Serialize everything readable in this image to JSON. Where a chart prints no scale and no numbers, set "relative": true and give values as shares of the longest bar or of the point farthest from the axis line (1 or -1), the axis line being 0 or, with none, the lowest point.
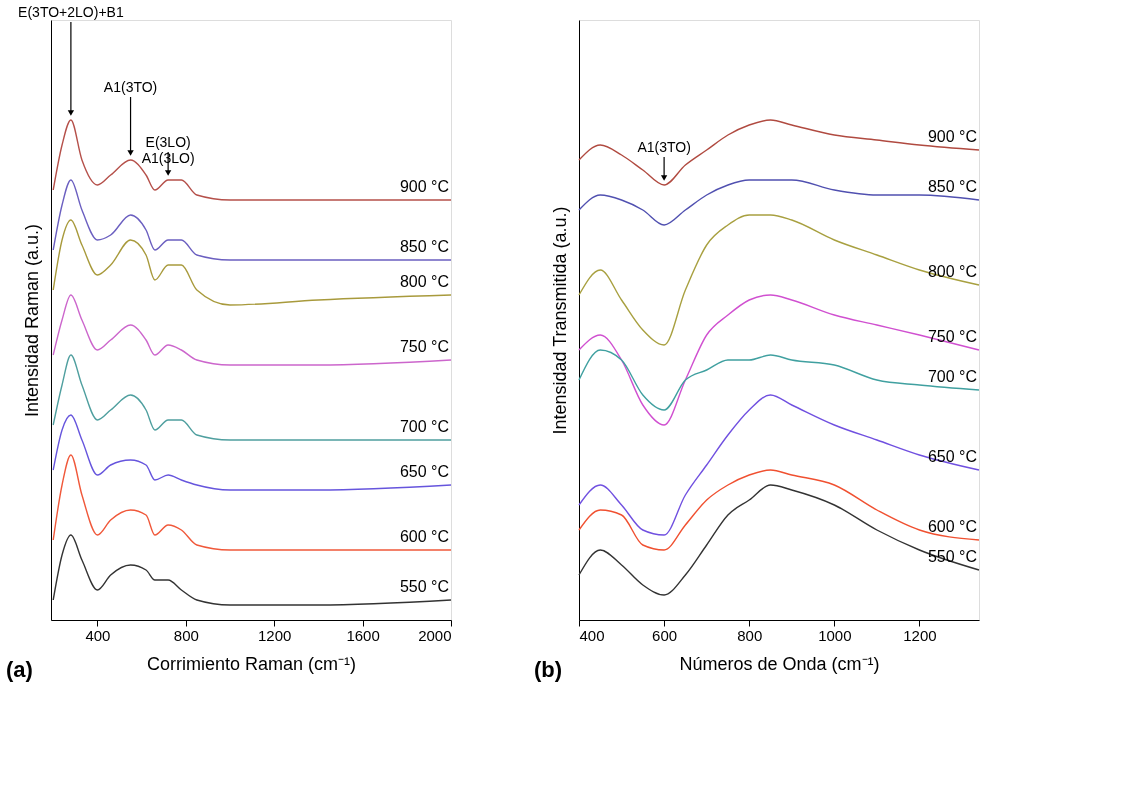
{
  "chart_data": [
    {
      "type": "line",
      "relative": true,
      "xlabel": "Corrimiento Raman (cm⁻¹)",
      "ylabel": "Intensidad Raman (a.u.)",
      "xlim": [
        190,
        2000
      ],
      "xticks": [
        400,
        800,
        1200,
        1600,
        2000
      ],
      "tick_labels": "x",
      "grid": false,
      "legend": false,
      "marker": "none",
      "line_style": "solid",
      "x": [
        200,
        240,
        280,
        330,
        400,
        460,
        550,
        620,
        660,
        720,
        780,
        850,
        1000,
        1400,
        2000
      ],
      "annotations": [
        {
          "text": "E(3TO+2LO)+B1",
          "x": 280,
          "y": 1.0
        },
        {
          "text": "A1(3TO)",
          "x": 550,
          "y": 0.92
        },
        {
          "text": "E(3LO)\nA1(3LO)",
          "x": 720,
          "y": 0.88
        },
        "(a)"
      ],
      "series": [
        {
          "name": "900 °C",
          "color": "#b5504a",
          "values": [
            0.86,
            0.95,
            1.0,
            0.92,
            0.87,
            0.89,
            0.92,
            0.89,
            0.86,
            0.88,
            0.88,
            0.85,
            0.84,
            0.84,
            0.84
          ]
        },
        {
          "name": "850 °C",
          "color": "#6b5fc0",
          "values": [
            0.74,
            0.83,
            0.88,
            0.82,
            0.76,
            0.77,
            0.81,
            0.78,
            0.74,
            0.76,
            0.76,
            0.73,
            0.72,
            0.72,
            0.72
          ]
        },
        {
          "name": "800 °C",
          "color": "#a89a3c",
          "values": [
            0.66,
            0.76,
            0.8,
            0.75,
            0.69,
            0.71,
            0.76,
            0.73,
            0.68,
            0.71,
            0.71,
            0.66,
            0.63,
            0.64,
            0.65
          ]
        },
        {
          "name": "750 °C",
          "color": "#cc66cc",
          "values": [
            0.53,
            0.6,
            0.65,
            0.6,
            0.54,
            0.56,
            0.59,
            0.56,
            0.53,
            0.55,
            0.54,
            0.52,
            0.51,
            0.51,
            0.52
          ]
        },
        {
          "name": "700 °C",
          "color": "#4f9f9f",
          "values": [
            0.39,
            0.47,
            0.53,
            0.47,
            0.4,
            0.42,
            0.45,
            0.42,
            0.38,
            0.4,
            0.4,
            0.37,
            0.36,
            0.36,
            0.36
          ]
        },
        {
          "name": "650 °C",
          "color": "#6655dd",
          "values": [
            0.3,
            0.38,
            0.41,
            0.36,
            0.29,
            0.31,
            0.32,
            0.31,
            0.28,
            0.29,
            0.28,
            0.27,
            0.26,
            0.26,
            0.27
          ]
        },
        {
          "name": "600 °C",
          "color": "#f0583a",
          "values": [
            0.16,
            0.27,
            0.33,
            0.25,
            0.17,
            0.2,
            0.22,
            0.21,
            0.17,
            0.19,
            0.18,
            0.15,
            0.14,
            0.14,
            0.14
          ]
        },
        {
          "name": "550 °C",
          "color": "#333333",
          "values": [
            0.04,
            0.13,
            0.17,
            0.12,
            0.06,
            0.09,
            0.11,
            0.1,
            0.08,
            0.08,
            0.06,
            0.04,
            0.03,
            0.03,
            0.04
          ]
        }
      ]
    },
    {
      "type": "line",
      "relative": true,
      "xlabel": "Números de Onda (cm⁻¹)",
      "ylabel": "Intensidad Transmitida (a.u.)",
      "xlim": [
        400,
        1340
      ],
      "xticks": [
        400,
        600,
        800,
        1000,
        1200
      ],
      "tick_labels": "x",
      "grid": false,
      "legend": false,
      "marker": "none",
      "line_style": "solid",
      "x": [
        400,
        450,
        500,
        550,
        600,
        650,
        700,
        750,
        800,
        850,
        900,
        1000,
        1100,
        1200,
        1340
      ],
      "annotations": [
        {
          "text": "A1(3TO)",
          "x": 600,
          "y": 0.87
        },
        "(b)"
      ],
      "series": [
        {
          "name": "900 °C",
          "color": "#b04a40",
          "values": [
            0.92,
            0.95,
            0.93,
            0.9,
            0.87,
            0.91,
            0.94,
            0.97,
            0.99,
            1.0,
            0.99,
            0.97,
            0.96,
            0.95,
            0.94
          ]
        },
        {
          "name": "850 °C",
          "color": "#5050b0",
          "values": [
            0.82,
            0.85,
            0.84,
            0.82,
            0.79,
            0.82,
            0.85,
            0.87,
            0.88,
            0.88,
            0.88,
            0.86,
            0.85,
            0.85,
            0.84
          ]
        },
        {
          "name": "800 °C",
          "color": "#a8a040",
          "values": [
            0.65,
            0.7,
            0.64,
            0.58,
            0.55,
            0.66,
            0.75,
            0.79,
            0.81,
            0.81,
            0.8,
            0.76,
            0.73,
            0.7,
            0.67
          ]
        },
        {
          "name": "750 °C",
          "color": "#d050d0",
          "values": [
            0.54,
            0.57,
            0.52,
            0.43,
            0.39,
            0.48,
            0.57,
            0.61,
            0.64,
            0.65,
            0.64,
            0.61,
            0.59,
            0.57,
            0.54
          ]
        },
        {
          "name": "700 °C",
          "color": "#40a0a0",
          "values": [
            0.48,
            0.54,
            0.52,
            0.45,
            0.42,
            0.48,
            0.5,
            0.52,
            0.52,
            0.53,
            0.52,
            0.51,
            0.48,
            0.47,
            0.46
          ]
        },
        {
          "name": "650 °C",
          "color": "#7050e0",
          "values": [
            0.23,
            0.27,
            0.23,
            0.18,
            0.17,
            0.25,
            0.31,
            0.37,
            0.42,
            0.45,
            0.43,
            0.39,
            0.36,
            0.33,
            0.3
          ]
        },
        {
          "name": "600 °C",
          "color": "#f05030",
          "values": [
            0.18,
            0.22,
            0.21,
            0.15,
            0.14,
            0.19,
            0.24,
            0.27,
            0.29,
            0.3,
            0.29,
            0.27,
            0.22,
            0.18,
            0.16
          ]
        },
        {
          "name": "550 °C",
          "color": "#333333",
          "values": [
            0.09,
            0.14,
            0.11,
            0.07,
            0.05,
            0.09,
            0.15,
            0.21,
            0.24,
            0.27,
            0.26,
            0.23,
            0.18,
            0.14,
            0.1
          ]
        }
      ]
    }
  ]
}
